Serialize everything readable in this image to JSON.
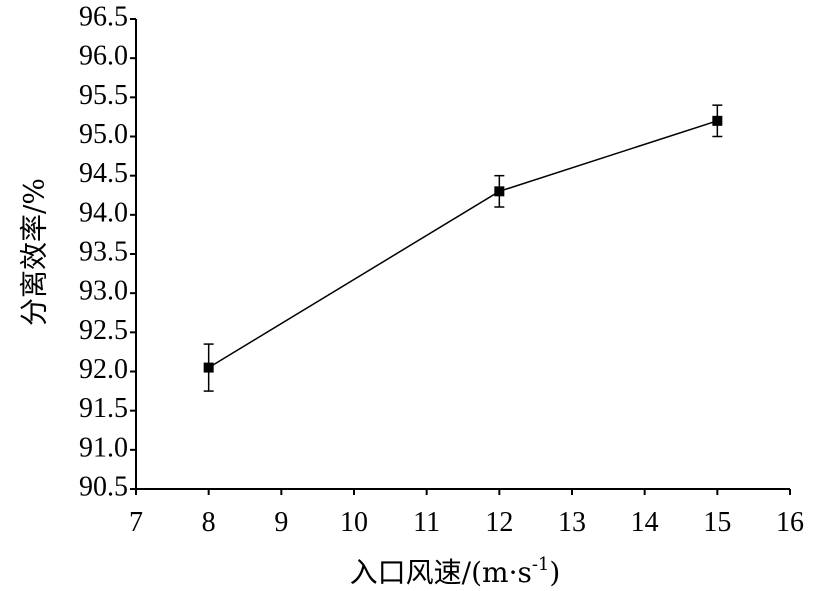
{
  "chart_data": {
    "type": "line",
    "xlabel": "入口风速/(m·s",
    "xlabel_sup": "-1",
    "xlabel_end": ")",
    "ylabel": "分离效率/%",
    "xlim": [
      7,
      16
    ],
    "ylim": [
      90.5,
      96.5
    ],
    "x_ticks": [
      7,
      8,
      9,
      10,
      11,
      12,
      13,
      14,
      15,
      16
    ],
    "y_ticks": [
      90.5,
      91.0,
      91.5,
      92.0,
      92.5,
      93.0,
      93.5,
      94.0,
      94.5,
      95.0,
      95.5,
      96.0,
      96.5
    ],
    "x_tick_labels": [
      "7",
      "8",
      "9",
      "10",
      "11",
      "12",
      "13",
      "14",
      "15",
      "16"
    ],
    "y_tick_labels": [
      "90.5",
      "91.0",
      "91.5",
      "92.0",
      "92.5",
      "93.0",
      "93.5",
      "94.0",
      "94.5",
      "95.0",
      "95.5",
      "96.0",
      "96.5"
    ],
    "series": [
      {
        "x": [
          8,
          12,
          15
        ],
        "y": [
          92.05,
          94.3,
          95.2
        ],
        "error": [
          0.3,
          0.2,
          0.2
        ],
        "marker": "square",
        "color": "#000000"
      }
    ],
    "grid": false,
    "legend": "none"
  }
}
